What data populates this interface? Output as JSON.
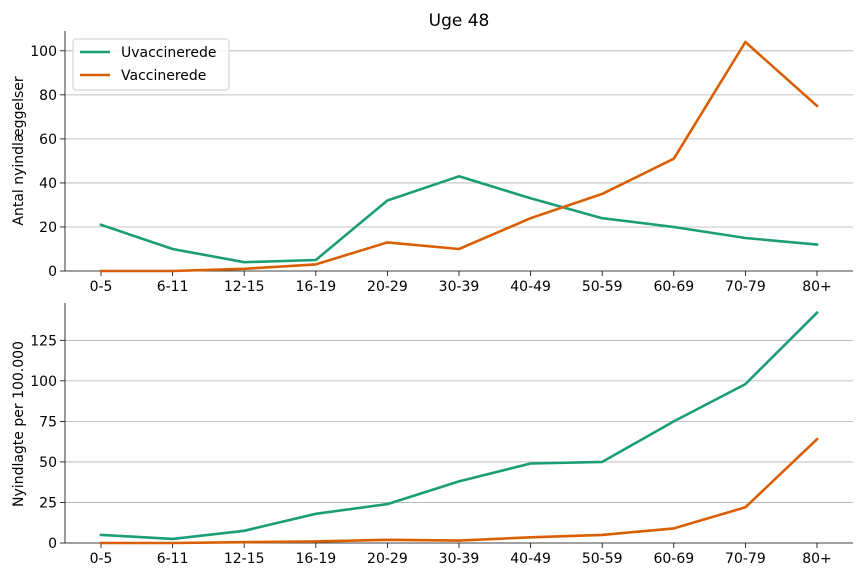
{
  "chart_data": [
    {
      "type": "line",
      "title": "Uge 48",
      "xlabel": "",
      "ylabel": "Antal nyindlæggelser",
      "categories": [
        "0-5",
        "6-11",
        "12-15",
        "16-19",
        "20-29",
        "30-39",
        "40-49",
        "50-59",
        "60-69",
        "70-79",
        "80+"
      ],
      "ylim": [
        0,
        109
      ],
      "yticks": [
        0,
        20,
        40,
        60,
        80,
        100
      ],
      "grid": "horizontal",
      "legend": "top-left",
      "series": [
        {
          "name": "Uvaccinerede",
          "color": "#1b9e77",
          "values": [
            21,
            10,
            4,
            5,
            32,
            43,
            33,
            24,
            20,
            15,
            12
          ]
        },
        {
          "name": "Vaccinerede",
          "color": "#d95f02",
          "values": [
            0,
            0,
            1,
            3,
            13,
            10,
            24,
            35,
            51,
            104,
            75
          ]
        }
      ]
    },
    {
      "type": "line",
      "title": "",
      "xlabel": "",
      "ylabel": "Nyindlagte per 100.000",
      "categories": [
        "0-5",
        "6-11",
        "12-15",
        "16-19",
        "20-29",
        "30-39",
        "40-49",
        "50-59",
        "60-69",
        "70-79",
        "80+"
      ],
      "ylim": [
        0,
        148
      ],
      "yticks": [
        0,
        25,
        50,
        75,
        100,
        125
      ],
      "grid": "horizontal",
      "legend": "none",
      "series": [
        {
          "name": "Uvaccinerede",
          "color": "#1b9e77",
          "values": [
            5,
            2.5,
            7.5,
            18,
            24,
            38,
            49,
            50,
            75,
            98,
            142
          ]
        },
        {
          "name": "Vaccinerede",
          "color": "#d95f02",
          "values": [
            0,
            0,
            0.5,
            1,
            2,
            1.5,
            3.5,
            5,
            9,
            22,
            64
          ]
        }
      ]
    }
  ]
}
